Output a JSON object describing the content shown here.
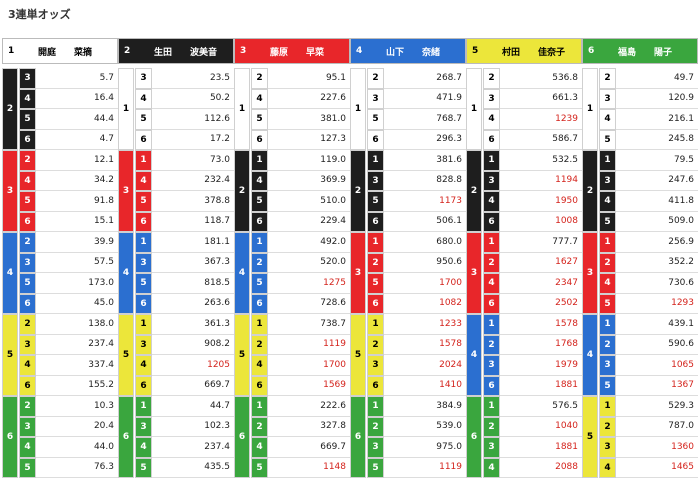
{
  "title": "3連単オッズ",
  "columns": [
    {
      "number": "1",
      "surname": "開庭",
      "given": "菜摘",
      "groups": [
        {
          "second": "2",
          "rows": [
            {
              "third": "3",
              "odds": "5.7"
            },
            {
              "third": "4",
              "odds": "16.4"
            },
            {
              "third": "5",
              "odds": "44.4"
            },
            {
              "third": "6",
              "odds": "4.7"
            }
          ]
        },
        {
          "second": "3",
          "rows": [
            {
              "third": "2",
              "odds": "12.1"
            },
            {
              "third": "4",
              "odds": "34.2"
            },
            {
              "third": "5",
              "odds": "91.8"
            },
            {
              "third": "6",
              "odds": "15.1"
            }
          ]
        },
        {
          "second": "4",
          "rows": [
            {
              "third": "2",
              "odds": "39.9"
            },
            {
              "third": "3",
              "odds": "57.5"
            },
            {
              "third": "5",
              "odds": "173.0"
            },
            {
              "third": "6",
              "odds": "45.0"
            }
          ]
        },
        {
          "second": "5",
          "rows": [
            {
              "third": "2",
              "odds": "138.0"
            },
            {
              "third": "3",
              "odds": "237.4"
            },
            {
              "third": "4",
              "odds": "337.4"
            },
            {
              "third": "6",
              "odds": "155.2"
            }
          ]
        },
        {
          "second": "6",
          "rows": [
            {
              "third": "2",
              "odds": "10.3"
            },
            {
              "third": "3",
              "odds": "20.4"
            },
            {
              "third": "4",
              "odds": "44.0"
            },
            {
              "third": "5",
              "odds": "76.3"
            }
          ]
        }
      ]
    },
    {
      "number": "2",
      "surname": "生田",
      "given": "波美音",
      "groups": [
        {
          "second": "1",
          "rows": [
            {
              "third": "3",
              "odds": "23.5"
            },
            {
              "third": "4",
              "odds": "50.2"
            },
            {
              "third": "5",
              "odds": "112.6"
            },
            {
              "third": "6",
              "odds": "17.2"
            }
          ]
        },
        {
          "second": "3",
          "rows": [
            {
              "third": "1",
              "odds": "73.0"
            },
            {
              "third": "4",
              "odds": "232.4"
            },
            {
              "third": "5",
              "odds": "378.8"
            },
            {
              "third": "6",
              "odds": "118.7"
            }
          ]
        },
        {
          "second": "4",
          "rows": [
            {
              "third": "1",
              "odds": "181.1"
            },
            {
              "third": "3",
              "odds": "367.3"
            },
            {
              "third": "5",
              "odds": "818.5"
            },
            {
              "third": "6",
              "odds": "263.6"
            }
          ]
        },
        {
          "second": "5",
          "rows": [
            {
              "third": "1",
              "odds": "361.3"
            },
            {
              "third": "3",
              "odds": "908.2"
            },
            {
              "third": "4",
              "odds": "1205"
            },
            {
              "third": "6",
              "odds": "669.7"
            }
          ]
        },
        {
          "second": "6",
          "rows": [
            {
              "third": "1",
              "odds": "44.7"
            },
            {
              "third": "3",
              "odds": "102.3"
            },
            {
              "third": "4",
              "odds": "237.4"
            },
            {
              "third": "5",
              "odds": "435.5"
            }
          ]
        }
      ]
    },
    {
      "number": "3",
      "surname": "藤原",
      "given": "早菜",
      "groups": [
        {
          "second": "1",
          "rows": [
            {
              "third": "2",
              "odds": "95.1"
            },
            {
              "third": "4",
              "odds": "227.6"
            },
            {
              "third": "5",
              "odds": "381.0"
            },
            {
              "third": "6",
              "odds": "127.3"
            }
          ]
        },
        {
          "second": "2",
          "rows": [
            {
              "third": "1",
              "odds": "119.0"
            },
            {
              "third": "4",
              "odds": "369.9"
            },
            {
              "third": "5",
              "odds": "510.0"
            },
            {
              "third": "6",
              "odds": "229.4"
            }
          ]
        },
        {
          "second": "4",
          "rows": [
            {
              "third": "1",
              "odds": "492.0"
            },
            {
              "third": "2",
              "odds": "520.0"
            },
            {
              "third": "5",
              "odds": "1275"
            },
            {
              "third": "6",
              "odds": "728.6"
            }
          ]
        },
        {
          "second": "5",
          "rows": [
            {
              "third": "1",
              "odds": "738.7"
            },
            {
              "third": "2",
              "odds": "1119"
            },
            {
              "third": "4",
              "odds": "1700"
            },
            {
              "third": "6",
              "odds": "1569"
            }
          ]
        },
        {
          "second": "6",
          "rows": [
            {
              "third": "1",
              "odds": "222.6"
            },
            {
              "third": "2",
              "odds": "327.8"
            },
            {
              "third": "4",
              "odds": "669.7"
            },
            {
              "third": "5",
              "odds": "1148"
            }
          ]
        }
      ]
    },
    {
      "number": "4",
      "surname": "山下",
      "given": "奈緒",
      "groups": [
        {
          "second": "1",
          "rows": [
            {
              "third": "2",
              "odds": "268.7"
            },
            {
              "third": "3",
              "odds": "471.9"
            },
            {
              "third": "5",
              "odds": "768.7"
            },
            {
              "third": "6",
              "odds": "296.3"
            }
          ]
        },
        {
          "second": "2",
          "rows": [
            {
              "third": "1",
              "odds": "381.6"
            },
            {
              "third": "3",
              "odds": "828.8"
            },
            {
              "third": "5",
              "odds": "1173"
            },
            {
              "third": "6",
              "odds": "506.1"
            }
          ]
        },
        {
          "second": "3",
          "rows": [
            {
              "third": "1",
              "odds": "680.0"
            },
            {
              "third": "2",
              "odds": "950.6"
            },
            {
              "third": "5",
              "odds": "1700"
            },
            {
              "third": "6",
              "odds": "1082"
            }
          ]
        },
        {
          "second": "5",
          "rows": [
            {
              "third": "1",
              "odds": "1233"
            },
            {
              "third": "2",
              "odds": "1578"
            },
            {
              "third": "3",
              "odds": "2024"
            },
            {
              "third": "6",
              "odds": "1410"
            }
          ]
        },
        {
          "second": "6",
          "rows": [
            {
              "third": "1",
              "odds": "384.9"
            },
            {
              "third": "2",
              "odds": "539.0"
            },
            {
              "third": "3",
              "odds": "975.0"
            },
            {
              "third": "5",
              "odds": "1119"
            }
          ]
        }
      ]
    },
    {
      "number": "5",
      "surname": "村田",
      "given": "佳奈子",
      "groups": [
        {
          "second": "1",
          "rows": [
            {
              "third": "2",
              "odds": "536.8"
            },
            {
              "third": "3",
              "odds": "661.3"
            },
            {
              "third": "4",
              "odds": "1239"
            },
            {
              "third": "6",
              "odds": "586.7"
            }
          ]
        },
        {
          "second": "2",
          "rows": [
            {
              "third": "1",
              "odds": "532.5"
            },
            {
              "third": "3",
              "odds": "1194"
            },
            {
              "third": "4",
              "odds": "1950"
            },
            {
              "third": "6",
              "odds": "1008"
            }
          ]
        },
        {
          "second": "3",
          "rows": [
            {
              "third": "1",
              "odds": "777.7"
            },
            {
              "third": "2",
              "odds": "1627"
            },
            {
              "third": "4",
              "odds": "2347"
            },
            {
              "third": "6",
              "odds": "2502"
            }
          ]
        },
        {
          "second": "4",
          "rows": [
            {
              "third": "1",
              "odds": "1578"
            },
            {
              "third": "2",
              "odds": "1768"
            },
            {
              "third": "3",
              "odds": "1979"
            },
            {
              "third": "6",
              "odds": "1881"
            }
          ]
        },
        {
          "second": "6",
          "rows": [
            {
              "third": "1",
              "odds": "576.5"
            },
            {
              "third": "2",
              "odds": "1040"
            },
            {
              "third": "3",
              "odds": "1881"
            },
            {
              "third": "4",
              "odds": "2088"
            }
          ]
        }
      ]
    },
    {
      "number": "6",
      "surname": "福島",
      "given": "陽子",
      "groups": [
        {
          "second": "1",
          "rows": [
            {
              "third": "2",
              "odds": "49.7"
            },
            {
              "third": "3",
              "odds": "120.9"
            },
            {
              "third": "4",
              "odds": "216.1"
            },
            {
              "third": "5",
              "odds": "245.8"
            }
          ]
        },
        {
          "second": "2",
          "rows": [
            {
              "third": "1",
              "odds": "79.5"
            },
            {
              "third": "3",
              "odds": "247.6"
            },
            {
              "third": "4",
              "odds": "411.8"
            },
            {
              "third": "5",
              "odds": "509.0"
            }
          ]
        },
        {
          "second": "3",
          "rows": [
            {
              "third": "1",
              "odds": "256.9"
            },
            {
              "third": "2",
              "odds": "352.2"
            },
            {
              "third": "4",
              "odds": "730.6"
            },
            {
              "third": "5",
              "odds": "1293"
            }
          ]
        },
        {
          "second": "4",
          "rows": [
            {
              "third": "1",
              "odds": "439.1"
            },
            {
              "third": "2",
              "odds": "590.6"
            },
            {
              "third": "3",
              "odds": "1065"
            },
            {
              "third": "5",
              "odds": "1367"
            }
          ]
        },
        {
          "second": "5",
          "rows": [
            {
              "third": "1",
              "odds": "529.3"
            },
            {
              "third": "2",
              "odds": "787.0"
            },
            {
              "third": "3",
              "odds": "1360"
            },
            {
              "third": "4",
              "odds": "1465"
            }
          ]
        }
      ]
    }
  ]
}
